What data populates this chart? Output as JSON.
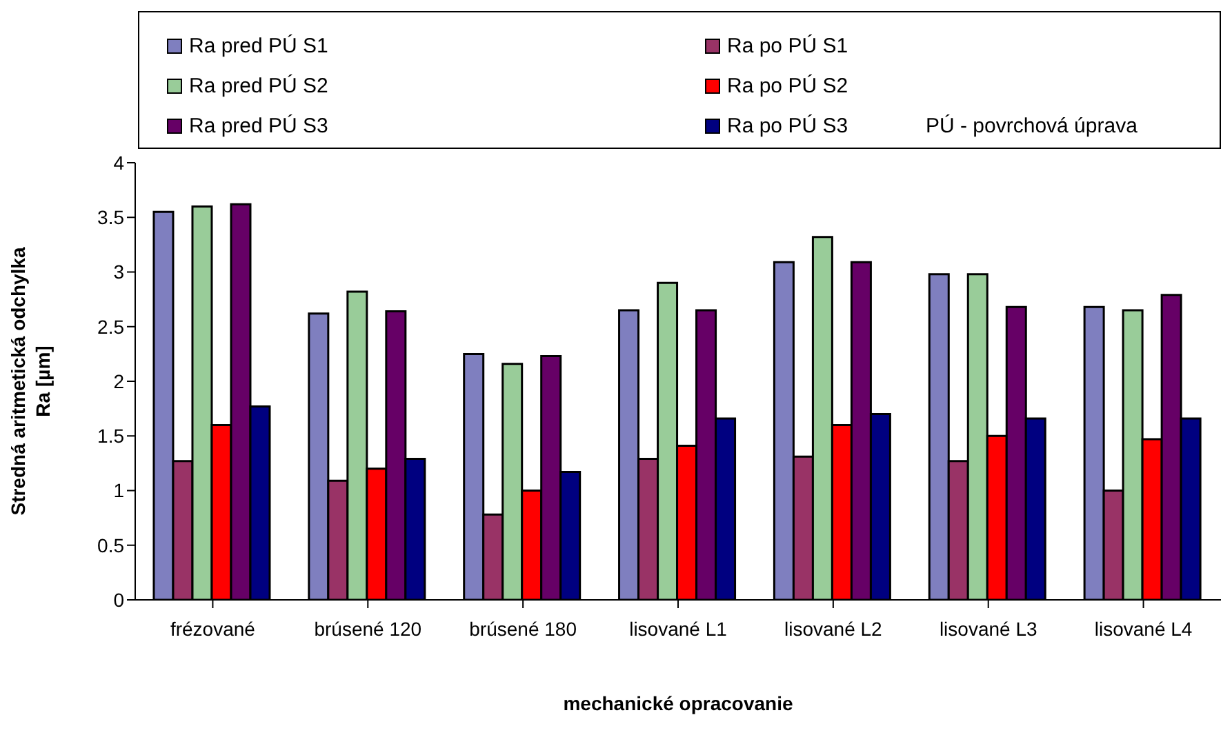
{
  "chart_data": {
    "type": "bar",
    "xlabel": "mechanické opracovanie",
    "ylabel": "Stredná aritmetická odchylka\nRa [µm]",
    "categories": [
      "frézované",
      "brúsené 120",
      "brúsené 180",
      "lisované L1",
      "lisované L2",
      "lisované L3",
      "lisované L4"
    ],
    "series": [
      {
        "name": "Ra pred PÚ S1",
        "color": "#7f7fbf",
        "values": [
          3.55,
          2.62,
          2.25,
          2.65,
          3.09,
          2.98,
          2.68
        ]
      },
      {
        "name": "Ra po PÚ S1",
        "color": "#993366",
        "values": [
          1.27,
          1.09,
          0.78,
          1.29,
          1.31,
          1.27,
          1.0
        ]
      },
      {
        "name": "Ra pred PÚ S2",
        "color": "#99cc99",
        "values": [
          3.6,
          2.82,
          2.16,
          2.9,
          3.32,
          2.98,
          2.65
        ]
      },
      {
        "name": "Ra po PÚ S2",
        "color": "#ff0000",
        "values": [
          1.6,
          1.2,
          1.0,
          1.41,
          1.6,
          1.5,
          1.47
        ]
      },
      {
        "name": "Ra pred PÚ S3",
        "color": "#660066",
        "values": [
          3.62,
          2.64,
          2.23,
          2.65,
          3.09,
          2.68,
          2.79
        ]
      },
      {
        "name": "Ra po PÚ S3",
        "color": "#000080",
        "values": [
          1.77,
          1.29,
          1.17,
          1.66,
          1.7,
          1.66,
          1.66
        ]
      }
    ],
    "ylim": [
      0,
      4
    ],
    "yticks": [
      0,
      0.5,
      1,
      1.5,
      2,
      2.5,
      3,
      3.5,
      4
    ],
    "grid": false,
    "legend": "top",
    "annotations": [
      "PÚ - povrchová úprava"
    ]
  }
}
